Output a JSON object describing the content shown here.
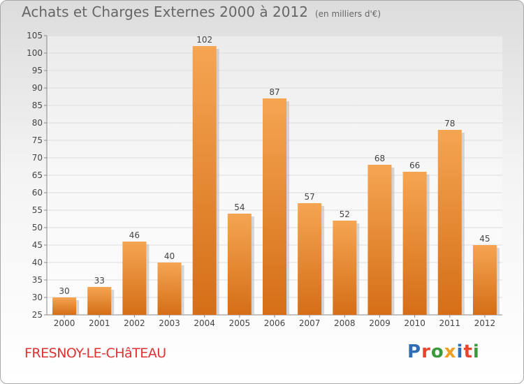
{
  "title": "Achats et Charges Externes 2000 à 2012",
  "subtitle": "(en milliers d'€)",
  "commune": "FRESNOY-LE-CHâTEAU",
  "logo": {
    "letters": [
      "P",
      "r",
      "o",
      "x",
      "i",
      "t",
      "i"
    ],
    "colors": [
      "#2f6db5",
      "#e8452c",
      "#3b9a3b",
      "#f0a020",
      "#2f6db5",
      "#e8452c",
      "#3b9a3b"
    ]
  },
  "colors": {
    "bar_top": "#f5a552",
    "bar_bottom": "#d56e17",
    "shadow": "#bdbdbd",
    "label": "#444444",
    "title": "#666666",
    "commune": "#dd3333",
    "grid": "#dddddd"
  },
  "chart_data": {
    "type": "bar",
    "categories": [
      "2000",
      "2001",
      "2002",
      "2003",
      "2004",
      "2005",
      "2006",
      "2007",
      "2008",
      "2009",
      "2010",
      "2011",
      "2012"
    ],
    "values": [
      30,
      33,
      46,
      40,
      102,
      54,
      87,
      57,
      52,
      68,
      66,
      78,
      45
    ],
    "ylim": [
      25,
      105
    ],
    "yticks": [
      25,
      30,
      35,
      40,
      45,
      50,
      55,
      60,
      65,
      70,
      75,
      80,
      85,
      90,
      95,
      100,
      105
    ],
    "grid": true
  }
}
